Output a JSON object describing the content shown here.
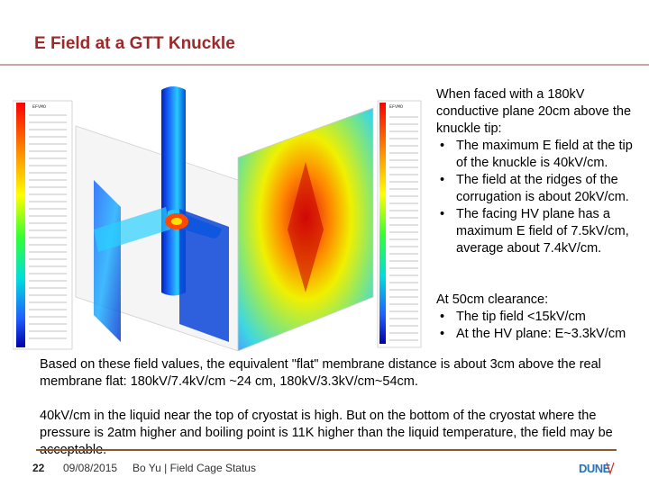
{
  "slide": {
    "title": "E Field at a GTT Knuckle",
    "bullets_block1": {
      "intro": "When faced with a 180kV conductive plane 20cm above the knuckle tip:",
      "items": [
        "The maximum E field at the tip of the knuckle is 40kV/cm.",
        "The field at the ridges of the corrugation is about 20kV/cm.",
        "The facing HV plane has a maximum E field of 7.5kV/cm, average about 7.4kV/cm."
      ]
    },
    "bullets_block2": {
      "intro": "At 50cm clearance:",
      "items": [
        "The tip field <15kV/cm",
        "At the HV plane: E~3.3kV/cm"
      ]
    },
    "paragraph1": "Based on these field values, the equivalent \"flat\" membrane distance is about 3cm above the real membrane flat: 180kV/7.4kV/cm ~24 cm, 180kV/3.3kV/cm~54cm.",
    "paragraph2": "40kV/cm in the liquid near the top of cryostat is high. But on the bottom of the cryostat where the pressure is 2atm higher and boiling point is 11K higher than the liquid temperature, the field may be acceptable."
  },
  "figure": {
    "left_legend_header": "EFVMO",
    "right_legend_header": "EFVMO"
  },
  "footer": {
    "page_number": "22",
    "date": "09/08/2015",
    "text": "Bo Yu | Field Cage Status",
    "logo_text": "DUNE"
  },
  "colors": {
    "title": "#9b2a2a",
    "footer_rule": "#8b5a2b",
    "logo_blue": "#2a72b5"
  }
}
